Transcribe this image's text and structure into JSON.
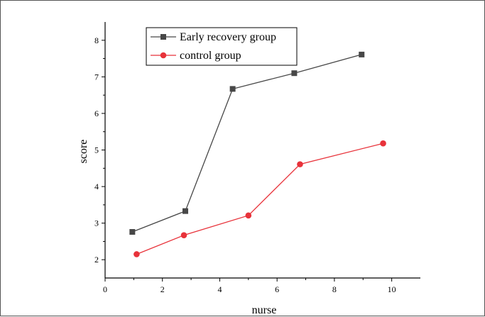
{
  "chart_data": {
    "type": "line",
    "xlabel": "nurse",
    "ylabel": "score",
    "xlim": [
      0,
      11
    ],
    "ylim": [
      1.5,
      8.5
    ],
    "xticks": [
      0,
      2,
      4,
      6,
      8,
      10
    ],
    "yticks": [
      2,
      3,
      4,
      5,
      6,
      7,
      8
    ],
    "grid": false,
    "legend_position": "top-left",
    "series": [
      {
        "name": "Early recovery group",
        "color": "#474747",
        "marker": "square",
        "x": [
          0.95,
          2.8,
          4.45,
          6.6,
          8.95
        ],
        "y": [
          2.76,
          3.33,
          6.67,
          7.1,
          7.61
        ]
      },
      {
        "name": "control group",
        "color": "#e8323a",
        "marker": "circle",
        "x": [
          1.1,
          2.75,
          5.0,
          6.8,
          9.7
        ],
        "y": [
          2.15,
          2.67,
          3.21,
          4.61,
          5.18
        ]
      }
    ]
  }
}
